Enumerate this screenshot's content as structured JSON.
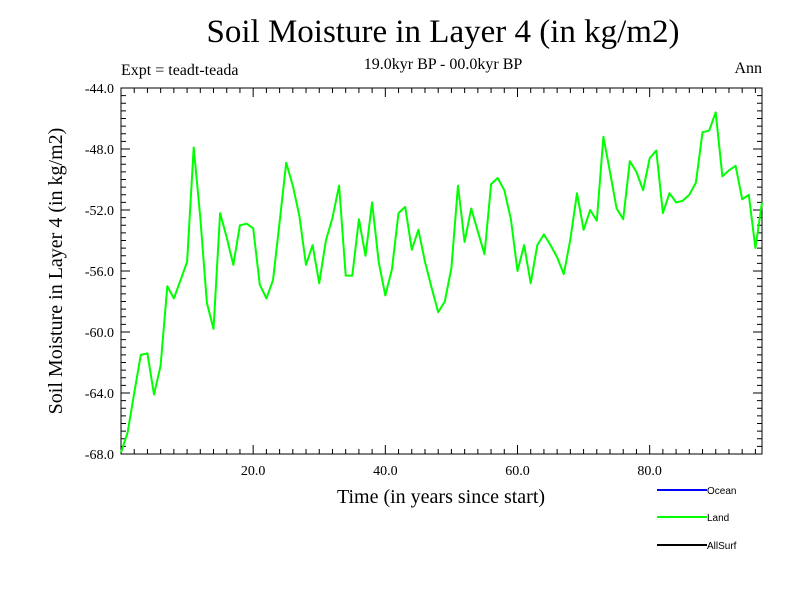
{
  "header": {
    "title": "Soil Moisture in Layer 4 (in kg/m2)",
    "subtitle": "19.0kyr BP - 00.0kyr BP",
    "expt": "Expt = teadt-teada",
    "season": "Ann"
  },
  "chart_data": {
    "type": "line",
    "title": "Soil Moisture in Layer 4 (in kg/m2)",
    "xlabel": "Time (in years since start)",
    "ylabel": "Soil Moisture in Layer 4 (in kg/m2)",
    "xlim": [
      0,
      97
    ],
    "ylim": [
      -68,
      -44
    ],
    "xticks": [
      20,
      40,
      60,
      80
    ],
    "xtick_labels": [
      "20.0",
      "40.0",
      "60.0",
      "80.0"
    ],
    "yticks": [
      -68,
      -64,
      -60,
      -56,
      -52,
      -48,
      -44
    ],
    "ytick_labels": [
      "-68.0",
      "-64.0",
      "-60.0",
      "-56.0",
      "-52.0",
      "-48.0",
      "-44.0"
    ],
    "legend_position": "bottom-right",
    "legend": [
      {
        "name": "Ocean",
        "color": "#0000ff"
      },
      {
        "name": "Land",
        "color": "#00ff00"
      },
      {
        "name": "AllSurf",
        "color": "#000000"
      }
    ],
    "series": [
      {
        "name": "Land",
        "color": "#00ff00",
        "x": [
          0,
          1,
          2,
          3,
          4,
          5,
          6,
          7,
          8,
          9,
          10,
          11,
          12,
          13,
          14,
          15,
          16,
          17,
          18,
          19,
          20,
          21,
          22,
          23,
          24,
          25,
          26,
          27,
          28,
          29,
          30,
          31,
          32,
          33,
          34,
          35,
          36,
          37,
          38,
          39,
          40,
          41,
          42,
          43,
          44,
          45,
          46,
          47,
          48,
          49,
          50,
          51,
          52,
          53,
          54,
          55,
          56,
          57,
          58,
          59,
          60,
          61,
          62,
          63,
          64,
          65,
          66,
          67,
          68,
          69,
          70,
          71,
          72,
          73,
          74,
          75,
          76,
          77,
          78,
          79,
          80,
          81,
          82,
          83,
          84,
          85,
          86,
          87,
          88,
          89,
          90,
          91,
          92,
          93,
          94,
          95,
          96,
          97
        ],
        "values": [
          -67.9,
          -66.6,
          -64.0,
          -61.5,
          -61.4,
          -64.1,
          -62.2,
          -57.0,
          -57.8,
          -56.6,
          -55.4,
          -47.9,
          -52.5,
          -58.1,
          -59.8,
          -52.2,
          -53.8,
          -55.6,
          -53.0,
          -52.9,
          -53.2,
          -56.9,
          -57.8,
          -56.6,
          -52.8,
          -48.9,
          -50.4,
          -52.4,
          -55.6,
          -54.3,
          -56.8,
          -54.0,
          -52.5,
          -50.4,
          -56.3,
          -56.3,
          -52.6,
          -55.0,
          -51.5,
          -55.4,
          -57.6,
          -55.9,
          -52.2,
          -51.8,
          -54.6,
          -53.3,
          -55.4,
          -57.1,
          -58.7,
          -58.0,
          -55.8,
          -50.4,
          -54.1,
          -51.9,
          -53.4,
          -54.9,
          -50.3,
          -49.9,
          -50.7,
          -52.6,
          -56.0,
          -54.3,
          -56.8,
          -54.3,
          -53.6,
          -54.3,
          -55.1,
          -56.2,
          -53.9,
          -50.9,
          -53.3,
          -52.0,
          -52.7,
          -47.2,
          -49.5,
          -51.9,
          -52.6,
          -48.8,
          -49.5,
          -50.7,
          -48.6,
          -48.1,
          -52.2,
          -50.9,
          -51.5,
          -51.4,
          -51.0,
          -50.2,
          -46.9,
          -46.8,
          -45.6,
          -49.8,
          -49.4,
          -49.1,
          -51.3,
          -51.0,
          -54.5,
          -51.5
        ]
      }
    ]
  }
}
